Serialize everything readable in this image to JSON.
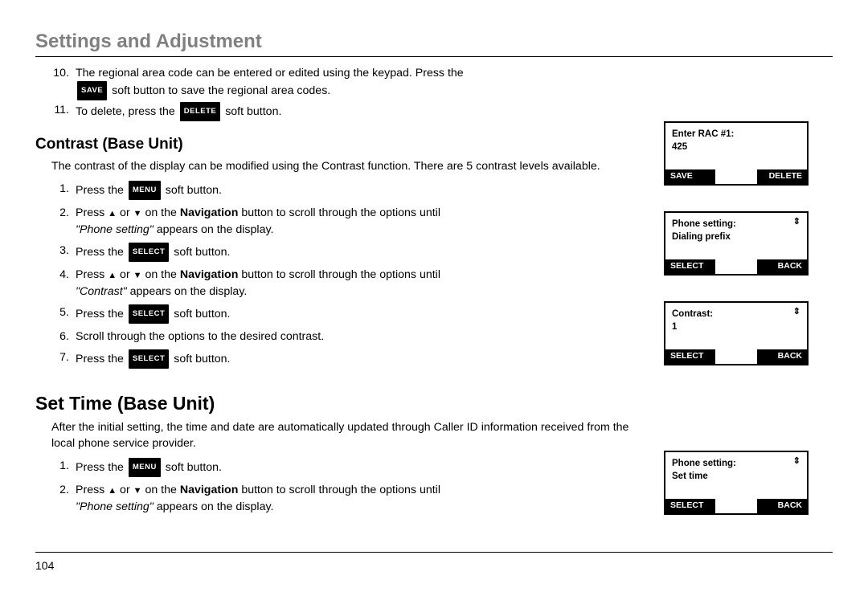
{
  "page_title": "Settings and Adjustment",
  "page_number": "104",
  "buttons": {
    "save": "SAVE",
    "delete": "DELETE",
    "menu": "MENU",
    "select": "SELECT",
    "back": "BACK"
  },
  "intro_steps": [
    {
      "num": "10.",
      "pre": "The regional area code can be entered or edited using the keypad.  Press the ",
      "btn": "SAVE",
      "post": " soft button to save the regional area codes."
    },
    {
      "num": "11.",
      "pre": "To delete, press the ",
      "btn": "DELETE",
      "post": " soft button."
    }
  ],
  "section1": {
    "heading": "Contrast (Base Unit)",
    "para": "The contrast of the display can be modified using the Contrast function. There are 5 contrast levels available.",
    "steps": [
      {
        "num": "1.",
        "pre": "Press the ",
        "btn": "MENU",
        "post": " soft button."
      },
      {
        "num": "2.",
        "nav_pre": "Press ",
        "nav_mid": " on the ",
        "nav_bold": "Navigation",
        "nav_post": " button to scroll through the options until ",
        "italic": "\"Phone setting\"",
        "post_italic": " appears on the display."
      },
      {
        "num": "3.",
        "pre": "Press the ",
        "btn": "SELECT",
        "post": " soft button."
      },
      {
        "num": "4.",
        "nav_pre": "Press ",
        "nav_mid": " on the ",
        "nav_bold": "Navigation",
        "nav_post": " button to scroll through the options until ",
        "italic": "\"Contrast\"",
        "post_italic": " appears on the display."
      },
      {
        "num": "5.",
        "pre": "Press the ",
        "btn": "SELECT",
        "post": " soft button."
      },
      {
        "num": "6.",
        "plain": "Scroll through the options to the desired contrast."
      },
      {
        "num": "7.",
        "pre": "Press the ",
        "btn": "SELECT",
        "post": " soft button."
      }
    ]
  },
  "section2": {
    "heading": "Set Time (Base Unit)",
    "para": "After the initial setting, the time and date are automatically updated through Caller ID information received from the local phone service provider.",
    "steps": [
      {
        "num": "1.",
        "pre": "Press the ",
        "btn": "MENU",
        "post": " soft button."
      },
      {
        "num": "2.",
        "nav_pre": "Press ",
        "nav_mid": " on the ",
        "nav_bold": "Navigation",
        "nav_post": " button to scroll through the options until ",
        "italic": "\"Phone setting\"",
        "post_italic": " appears on the display."
      }
    ]
  },
  "lcds": [
    {
      "line1": "Enter RAC #1:",
      "line2": "425",
      "left_btn": "SAVE",
      "right_btn": "DELETE",
      "arrows": false
    },
    {
      "line1": "Phone setting:",
      "line2": "Dialing prefix",
      "left_btn": "SELECT",
      "right_btn": "BACK",
      "arrows": true
    },
    {
      "line1": "Contrast:",
      "line2": "1",
      "left_btn": "SELECT",
      "right_btn": "BACK",
      "arrows": true
    },
    {
      "line1": "Phone setting:",
      "line2": "Set time",
      "left_btn": "SELECT",
      "right_btn": "BACK",
      "arrows": true
    }
  ],
  "nav_or": " or "
}
